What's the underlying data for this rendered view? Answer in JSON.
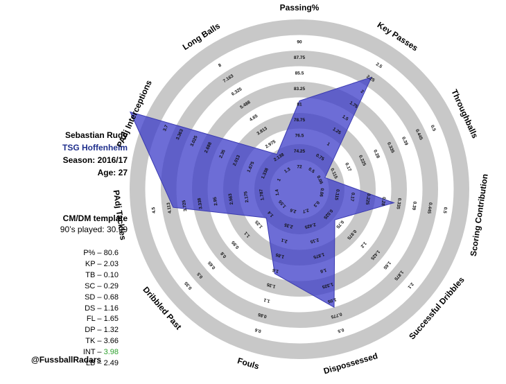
{
  "player": {
    "name": "Sebastian Rudy",
    "team": "TSG Hoffenheim",
    "season": "Season: 2016/17",
    "age": "Age: 27"
  },
  "template": {
    "title": "CM/DM template",
    "minutes": "90’s played: 30.99"
  },
  "stats": [
    {
      "key": "P%",
      "value": "80.6",
      "highlight": false
    },
    {
      "key": "KP",
      "value": "2.03",
      "highlight": false
    },
    {
      "key": "TB",
      "value": "0.10",
      "highlight": false
    },
    {
      "key": "SC",
      "value": "0.29",
      "highlight": false
    },
    {
      "key": "SD",
      "value": "0.68",
      "highlight": false
    },
    {
      "key": "DS",
      "value": "1.16",
      "highlight": false
    },
    {
      "key": "FL",
      "value": "1.65",
      "highlight": false
    },
    {
      "key": "DP",
      "value": "1.32",
      "highlight": false
    },
    {
      "key": "TK",
      "value": "3.66",
      "highlight": false
    },
    {
      "key": "INT",
      "value": "3.98",
      "highlight": true
    },
    {
      "key": "LB",
      "value": "2.49",
      "highlight": false
    }
  ],
  "credit": "@FussballRadars",
  "colors": {
    "polygon": "#3c3cc8",
    "ring": "#c8c8c8",
    "highlight": "#2ca02c",
    "team": "#1f2f8c"
  },
  "chart_data": {
    "type": "radar",
    "rings": 5,
    "axes": [
      {
        "label": "Passing%",
        "ticks": [
          "72",
          "74.25",
          "76.5",
          "78.75",
          "81",
          "83.25",
          "85.5",
          "87.75",
          "90"
        ],
        "value": 80.6,
        "min": 72,
        "max": 90
      },
      {
        "label": "Key Passes",
        "ticks": [
          "0.5",
          "0.75",
          "1",
          "1.25",
          "1.5",
          "1.75",
          "2",
          "2.25",
          "2.5"
        ],
        "value": 2.03,
        "min": 0.5,
        "max": 2.5
      },
      {
        "label": "Throughballs",
        "ticks": [
          "0.06",
          "0.115",
          "0.17",
          "0.225",
          "0.28",
          "0.335",
          "0.39",
          "0.445",
          "0.5"
        ],
        "value": 0.1,
        "min": 0.06,
        "max": 0.5
      },
      {
        "label": "Scoring Contribution",
        "ticks": [
          "0.06",
          "0.115",
          "0.17",
          "0.225",
          "0.28",
          "0.335",
          "0.39",
          "0.445",
          "0.5"
        ],
        "value": 0.29,
        "min": 0.06,
        "max": 0.5
      },
      {
        "label": "Successful Dribbles",
        "ticks": [
          "0.3",
          "0.525",
          "0.75",
          "0.975",
          "1.2",
          "1.425",
          "1.65",
          "1.875",
          "2.1"
        ],
        "value": 0.68,
        "min": 0.3,
        "max": 2.1
      },
      {
        "label": "Dispossessed",
        "ticks": [
          "2.7",
          "2.425",
          "2.15",
          "1.875",
          "1.6",
          "1.325",
          "1.05",
          "0.775",
          "0.5"
        ],
        "value": 1.16,
        "min": 2.7,
        "max": 0.5
      },
      {
        "label": "Fouls",
        "ticks": [
          "2.6",
          "2.35",
          "2.1",
          "1.85",
          "1.6",
          "1.35",
          "1.1",
          "0.85",
          "0.6"
        ],
        "value": 1.65,
        "min": 2.6,
        "max": 0.6
      },
      {
        "label": "Dribbled Past",
        "ticks": [
          "1.55",
          "1.4",
          "1.25",
          "1.1",
          "0.95",
          "0.8",
          "0.65",
          "0.5",
          "0.35"
        ],
        "value": 1.32,
        "min": 1.55,
        "max": 0.35
      },
      {
        "label": "PAdj Tackles",
        "ticks": [
          "1.4",
          "1.787",
          "2.175",
          "2.563",
          "2.95",
          "3.338",
          "3.725",
          "4.113",
          "4.5"
        ],
        "value": 3.66,
        "min": 1.4,
        "max": 4.5
      },
      {
        "label": "PAdj Interceptions",
        "ticks": [
          "1",
          "1.338",
          "1.675",
          "2.013",
          "2.35",
          "2.688",
          "3.025",
          "3.363",
          "3.7"
        ],
        "value": 3.98,
        "min": 1,
        "max": 3.7
      },
      {
        "label": "Long Balls",
        "ticks": [
          "1.3",
          "2.138",
          "2.975",
          "3.813",
          "4.65",
          "5.488",
          "6.325",
          "7.163",
          "8"
        ],
        "value": 2.49,
        "min": 1.3,
        "max": 8
      }
    ]
  }
}
